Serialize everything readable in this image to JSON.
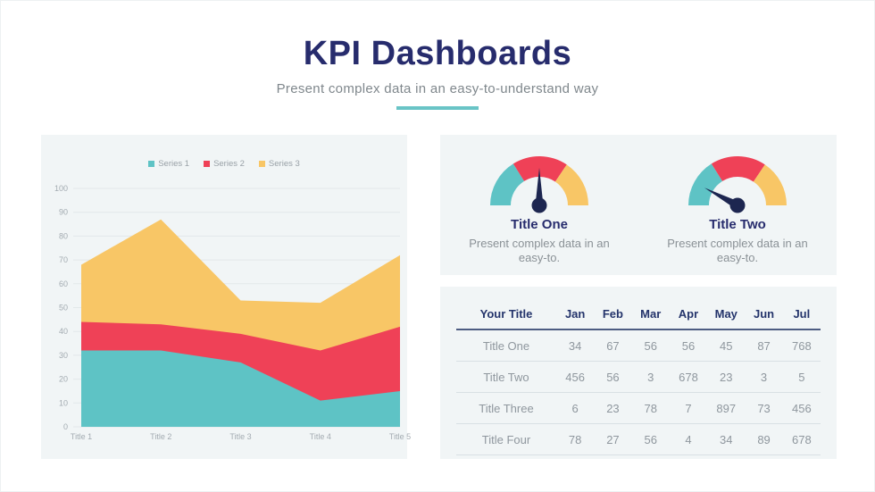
{
  "page": {
    "title": "KPI Dashboards",
    "subtitle": "Present complex data in an easy-to-understand way"
  },
  "colors": {
    "teal": "#5ec3c5",
    "red": "#ef4157",
    "yellow": "#f8c666",
    "navy": "#272c6d",
    "needle_navy": "#1d2650",
    "gray_text": "#8f979e",
    "axis_text": "#a3abb1",
    "panel_bg": "#f1f5f6",
    "gridline": "#e2e8ea",
    "underline_teal": "#69c4c6"
  },
  "chart_data": [
    {
      "id": "stacked-area",
      "type": "area",
      "stacked": true,
      "title": "",
      "xlabel": "",
      "ylabel": "",
      "categories": [
        "Title 1",
        "Title 2",
        "Title 3",
        "Title 4",
        "Title 5"
      ],
      "series": [
        {
          "name": "Series 1",
          "color": "#5ec3c5",
          "values": [
            32,
            32,
            27,
            11,
            15
          ]
        },
        {
          "name": "Series 2",
          "color": "#ef4157",
          "values": [
            12,
            11,
            12,
            21,
            27
          ]
        },
        {
          "name": "Series 3",
          "color": "#f8c666",
          "values": [
            24,
            44,
            14,
            20,
            30
          ]
        }
      ],
      "stacked_tops": {
        "series1": [
          32,
          32,
          27,
          11,
          15
        ],
        "series2": [
          44,
          43,
          39,
          32,
          42
        ],
        "series3": [
          68,
          87,
          53,
          52,
          72
        ]
      },
      "ylim": [
        0,
        100
      ],
      "ytick_step": 10,
      "grid": true,
      "legend_position": "top-center"
    },
    {
      "id": "gauge-one",
      "type": "gauge",
      "title": "Title One",
      "description": "Present complex data in an easy-to.",
      "segments": [
        {
          "name": "low",
          "color": "#5ec3c5",
          "from_deg": 180,
          "to_deg": 122
        },
        {
          "name": "mid",
          "color": "#ef4157",
          "from_deg": 122,
          "to_deg": 56
        },
        {
          "name": "high",
          "color": "#f8c666",
          "from_deg": 56,
          "to_deg": 0
        }
      ],
      "needle_angle_deg": 90
    },
    {
      "id": "gauge-two",
      "type": "gauge",
      "title": "Title Two",
      "description": "Present complex data in an easy-to.",
      "segments": [
        {
          "name": "low",
          "color": "#5ec3c5",
          "from_deg": 180,
          "to_deg": 122
        },
        {
          "name": "mid",
          "color": "#ef4157",
          "from_deg": 122,
          "to_deg": 56
        },
        {
          "name": "high",
          "color": "#f8c666",
          "from_deg": 56,
          "to_deg": 0
        }
      ],
      "needle_angle_deg": 152
    },
    {
      "id": "kpi-table",
      "type": "table",
      "columns": [
        "Your Title",
        "Jan",
        "Feb",
        "Mar",
        "Apr",
        "May",
        "Jun",
        "Jul"
      ],
      "rows": [
        {
          "label": "Title One",
          "values": [
            34,
            67,
            56,
            56,
            45,
            87,
            768
          ]
        },
        {
          "label": "Title Two",
          "values": [
            456,
            56,
            3,
            678,
            23,
            3,
            5
          ]
        },
        {
          "label": "Title Three",
          "values": [
            6,
            23,
            78,
            7,
            897,
            73,
            456
          ]
        },
        {
          "label": "Title Four",
          "values": [
            78,
            27,
            56,
            4,
            34,
            89,
            678
          ]
        }
      ]
    }
  ]
}
